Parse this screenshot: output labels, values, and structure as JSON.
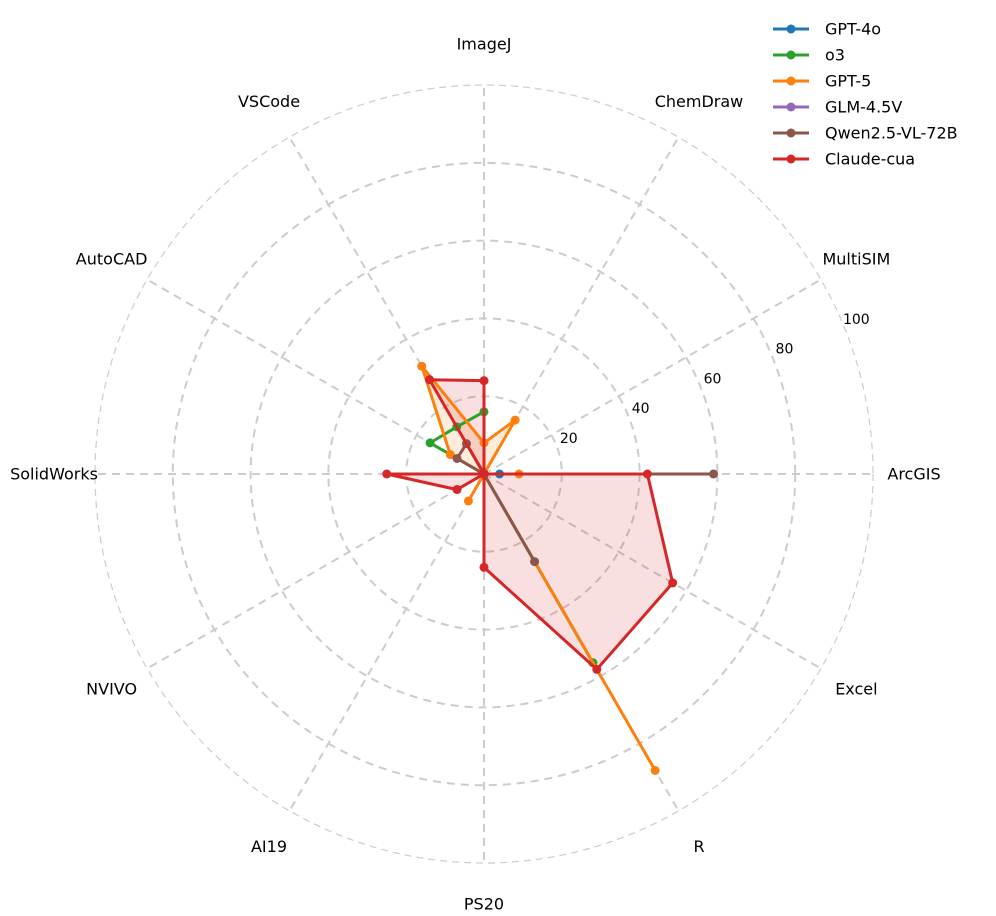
{
  "chart_data": {
    "type": "radar",
    "title": "",
    "axes": [
      "ArcGIS",
      "MultiSIM",
      "ChemDraw",
      "ImageJ",
      "VSCode",
      "AutoCAD",
      "SolidWorks",
      "NVIVO",
      "AI19",
      "PS20",
      "R",
      "Excel"
    ],
    "rlim": [
      0,
      100
    ],
    "rticks": [
      20,
      40,
      60,
      80,
      100
    ],
    "rtick_labels": [
      "20",
      "40",
      "60",
      "80",
      "100"
    ],
    "grid": true,
    "legend_position": "top-right",
    "series": [
      {
        "name": "GPT-4o",
        "color": "#1f77b4",
        "fill": false,
        "values": [
          4,
          0,
          0,
          0,
          0,
          0,
          0,
          0,
          0,
          0,
          0,
          0
        ]
      },
      {
        "name": "o3",
        "color": "#2ca02c",
        "fill": false,
        "values": [
          0,
          0,
          0,
          16,
          14,
          16,
          0,
          0,
          0,
          0,
          56,
          0
        ]
      },
      {
        "name": "GPT-5",
        "color": "#ff7f0e",
        "fill": true,
        "values": [
          9,
          0,
          16,
          8,
          32,
          10,
          0,
          0,
          8,
          0,
          88,
          0
        ]
      },
      {
        "name": "GLM-4.5V",
        "color": "#9467bd",
        "fill": false,
        "values": [
          0,
          0,
          0,
          0,
          0,
          0,
          0,
          0,
          0,
          0,
          0,
          0
        ]
      },
      {
        "name": "Qwen2.5-VL-72B",
        "color": "#8c564b",
        "fill": false,
        "values": [
          59,
          0,
          0,
          0,
          9,
          8,
          0,
          0,
          0,
          0,
          26,
          0
        ]
      },
      {
        "name": "Claude-cua",
        "color": "#d62728",
        "fill": true,
        "values": [
          42,
          0,
          0,
          24,
          28,
          0,
          25,
          8,
          0,
          24,
          58,
          56
        ]
      }
    ]
  }
}
